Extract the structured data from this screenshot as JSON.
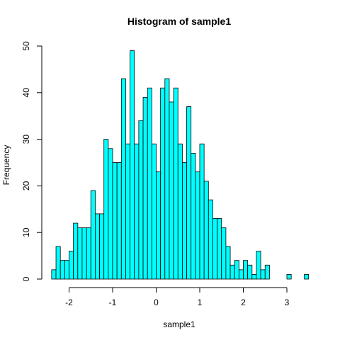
{
  "chart_data": {
    "type": "bar",
    "title": "Histogram of sample1",
    "xlabel": "sample1",
    "ylabel": "Frequency",
    "bar_fill": "#00ffff",
    "bar_stroke": "#000000",
    "bin_start": -2.4,
    "bin_width": 0.1,
    "values": [
      2,
      7,
      4,
      4,
      6,
      12,
      11,
      11,
      11,
      19,
      14,
      14,
      30,
      28,
      25,
      25,
      43,
      29,
      49,
      29,
      34,
      39,
      41,
      29,
      23,
      41,
      43,
      38,
      41,
      29,
      25,
      37,
      27,
      23,
      29,
      21,
      17,
      13,
      13,
      11,
      7,
      3,
      4,
      2,
      4,
      3,
      1,
      6,
      2,
      3,
      0,
      0,
      0,
      0,
      1,
      0,
      0,
      0,
      1
    ],
    "xticks": [
      -2,
      -1,
      0,
      1,
      2,
      3
    ],
    "xtick_labels": [
      "-2",
      "-1",
      "0",
      "1",
      "2",
      "3"
    ],
    "yticks": [
      0,
      10,
      20,
      30,
      40,
      50
    ],
    "ytick_labels": [
      "0",
      "10",
      "20",
      "30",
      "40",
      "50"
    ],
    "xlim": [
      -2.55,
      3.6
    ],
    "ylim": [
      0,
      50
    ]
  }
}
